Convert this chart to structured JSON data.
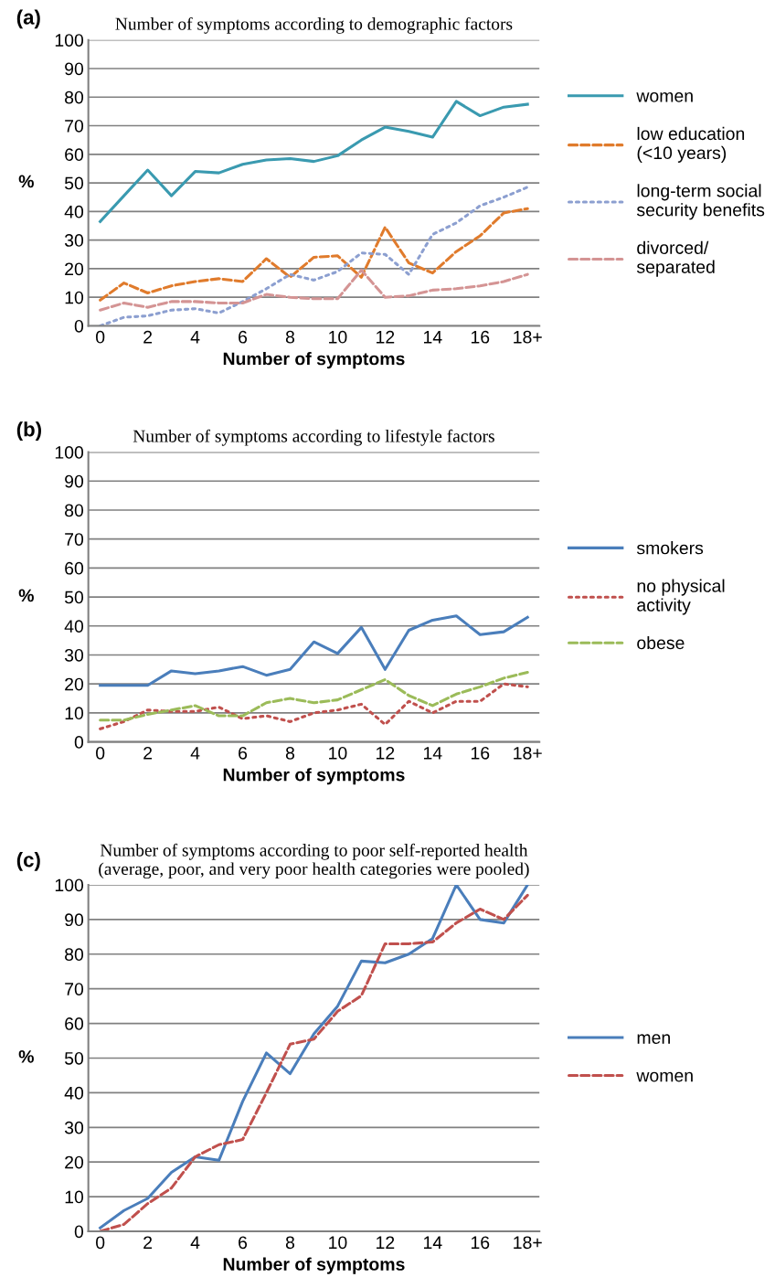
{
  "chart_data": [
    {
      "type": "line",
      "title": "Number of symptoms according to demographic factors",
      "xlabel": "Number of symptoms",
      "ylabel": "%",
      "annotations": [
        "(a)"
      ],
      "categories": [
        "0",
        null,
        "2",
        null,
        "4",
        null,
        "6",
        null,
        "8",
        null,
        "10",
        null,
        "12",
        null,
        "14",
        null,
        "16",
        null,
        "18+"
      ],
      "ylim": [
        0,
        100
      ],
      "yticks": [
        0,
        10,
        20,
        30,
        40,
        50,
        60,
        70,
        80,
        90,
        100
      ],
      "grid": "y",
      "legend": "right",
      "series": [
        {
          "name": "women",
          "color": "#3a9ab0",
          "line_style": "solid",
          "values": [
            36.5,
            45.5,
            54.5,
            45.5,
            54,
            53.5,
            56.5,
            58,
            58.5,
            57.5,
            59.5,
            65,
            69.5,
            68,
            66,
            78.5,
            73.5,
            76.5,
            77.5
          ]
        },
        {
          "name": "low education\n(<10 years)",
          "color": "#e07b2c",
          "line_style": "dashed",
          "values": [
            9,
            15,
            11.5,
            14,
            15.5,
            16.5,
            15.5,
            23.5,
            17,
            24,
            24.5,
            17,
            34.5,
            22,
            18.5,
            26,
            31.5,
            39.5,
            41
          ]
        },
        {
          "name": "long-term social\nsecurity benefits",
          "color": "#8c9fd0",
          "line_style": "dotted",
          "values": [
            0,
            3,
            3.5,
            5.5,
            6,
            4.5,
            8.5,
            13,
            18,
            16,
            19,
            25.5,
            25,
            18,
            32,
            36,
            42,
            45,
            48.5
          ]
        },
        {
          "name": "divorced/\nseparated",
          "color": "#d49494",
          "line_style": "dashed",
          "values": [
            5.5,
            8,
            6.5,
            8.5,
            8.5,
            8,
            8,
            11,
            10,
            9.5,
            9.5,
            19.5,
            10,
            10.5,
            12.5,
            13,
            14,
            15.5,
            18
          ]
        }
      ]
    },
    {
      "type": "line",
      "title": "Number of symptoms according to lifestyle factors",
      "xlabel": "Number of symptoms",
      "ylabel": "%",
      "annotations": [
        "(b)"
      ],
      "categories": [
        "0",
        null,
        "2",
        null,
        "4",
        null,
        "6",
        null,
        "8",
        null,
        "10",
        null,
        "12",
        null,
        "14",
        null,
        "16",
        null,
        "18+"
      ],
      "ylim": [
        0,
        100
      ],
      "yticks": [
        0,
        10,
        20,
        30,
        40,
        50,
        60,
        70,
        80,
        90,
        100
      ],
      "grid": "y",
      "legend": "right",
      "series": [
        {
          "name": "smokers",
          "color": "#4a7ebb",
          "line_style": "solid",
          "values": [
            19.5,
            19.5,
            19.5,
            24.5,
            23.5,
            24.5,
            26,
            23,
            25,
            34.5,
            30.5,
            39.5,
            25,
            38.5,
            42,
            43.5,
            37,
            38,
            43
          ]
        },
        {
          "name": "no physical\nactivity",
          "color": "#c0504d",
          "line_style": "dotted",
          "values": [
            4.5,
            7,
            11,
            10.5,
            10.5,
            12,
            8,
            9,
            7,
            10,
            11,
            13,
            6,
            14,
            10,
            14,
            14,
            20,
            19
          ]
        },
        {
          "name": "obese",
          "color": "#9bbb59",
          "line_style": "dashed",
          "values": [
            7.5,
            7.5,
            9.5,
            11,
            12.5,
            9,
            9,
            13.5,
            15,
            13.5,
            14.5,
            18,
            21.5,
            16,
            12.5,
            16.5,
            19,
            22,
            24
          ]
        }
      ]
    },
    {
      "type": "line",
      "title": "Number of symptoms according to poor self-reported health\n(average, poor, and very poor health categories were pooled)",
      "xlabel": "Number of symptoms",
      "ylabel": "%",
      "annotations": [
        "(c)"
      ],
      "categories": [
        "0",
        null,
        "2",
        null,
        "4",
        null,
        "6",
        null,
        "8",
        null,
        "10",
        null,
        "12",
        null,
        "14",
        null,
        "16",
        null,
        "18+"
      ],
      "ylim": [
        0,
        100
      ],
      "yticks": [
        0,
        10,
        20,
        30,
        40,
        50,
        60,
        70,
        80,
        90,
        100
      ],
      "grid": "y",
      "legend": "right",
      "series": [
        {
          "name": "men",
          "color": "#4a7ebb",
          "line_style": "solid",
          "values": [
            1,
            6,
            9.5,
            17,
            21.5,
            20.5,
            37.5,
            51.5,
            45.5,
            57,
            65,
            78,
            77.5,
            80,
            84.5,
            100,
            90,
            89,
            100
          ]
        },
        {
          "name": "women",
          "color": "#c0504d",
          "line_style": "dashed",
          "values": [
            0,
            2,
            8,
            12.5,
            21.5,
            25,
            26.5,
            40,
            54,
            55.5,
            63.5,
            68,
            83,
            83,
            83.5,
            89,
            93,
            90,
            97
          ]
        }
      ]
    }
  ]
}
